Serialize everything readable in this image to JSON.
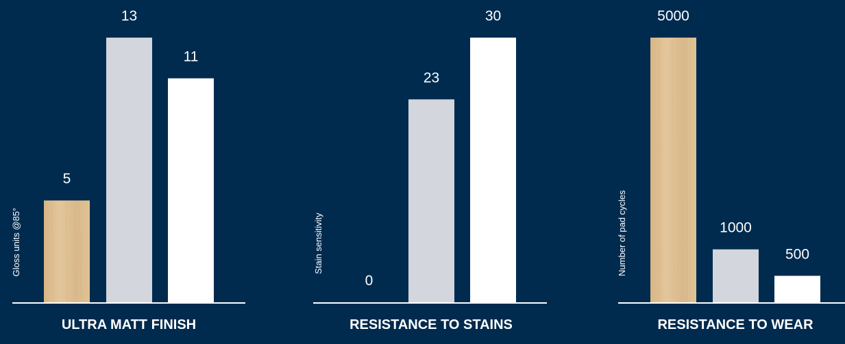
{
  "colors": {
    "background": "#002b4f",
    "wood": "#dcbc8f",
    "grey": "#d3d6dd",
    "white": "#ffffff",
    "axis": "#ffffff",
    "text": "#ffffff"
  },
  "chart_data": [
    {
      "type": "bar",
      "title": "ULTRA MATT FINISH",
      "ylabel": "Gloss units @85°",
      "categories": [
        "",
        "",
        ""
      ],
      "values": [
        5,
        13,
        11
      ],
      "bar_colors": [
        "wood",
        "grey",
        "white"
      ],
      "labels": [
        "5",
        "13",
        "11"
      ],
      "ylim": [
        0,
        13
      ]
    },
    {
      "type": "bar",
      "title": "RESISTANCE TO STAINS",
      "ylabel": "Stain sensitivity",
      "categories": [
        "",
        "",
        ""
      ],
      "values": [
        0,
        23,
        30
      ],
      "bar_colors": [
        "wood",
        "grey",
        "white"
      ],
      "labels": [
        "0",
        "23",
        "30"
      ],
      "ylim": [
        0,
        30
      ]
    },
    {
      "type": "bar",
      "title": "RESISTANCE TO WEAR",
      "ylabel": "Number of pad cycles",
      "categories": [
        "",
        "",
        ""
      ],
      "values": [
        5000,
        1000,
        500
      ],
      "bar_colors": [
        "wood",
        "grey",
        "white"
      ],
      "labels": [
        "5000",
        "1000",
        "500"
      ],
      "ylim": [
        0,
        5000
      ]
    }
  ]
}
